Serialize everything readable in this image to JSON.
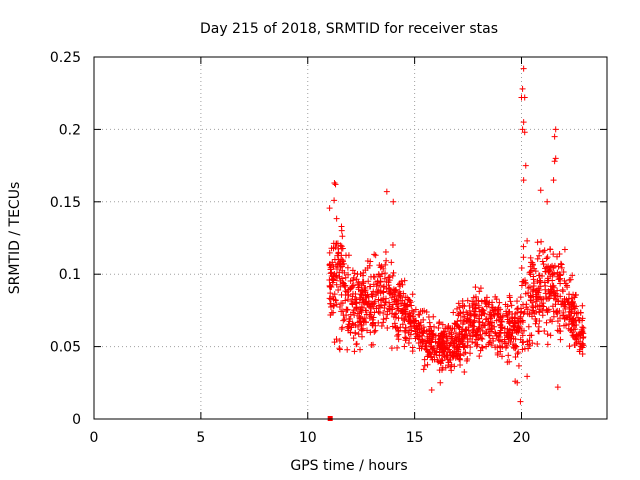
{
  "chart_data": {
    "type": "scatter",
    "title": "Day 215 of 2018, SRMTID for receiver stas",
    "xlabel": "GPS time / hours",
    "ylabel": "SRMTID / TECUs",
    "xlim": [
      0,
      24
    ],
    "ylim": [
      0,
      0.25
    ],
    "xticks": [
      0,
      5,
      10,
      15,
      20
    ],
    "yticks": [
      0,
      0.05,
      0.1,
      0.15,
      0.2,
      0.25
    ],
    "xtick_labels": [
      "0",
      "5",
      "10",
      "15",
      "20"
    ],
    "ytick_labels": [
      "0",
      "0.05",
      "0.1",
      "0.15",
      "0.2",
      "0.25"
    ],
    "grid": true,
    "marker": "+",
    "series_color": "#ff0000",
    "axis_color": "#000000",
    "grid_color": "#a0a0a0",
    "zero_marker": {
      "x": 11.05,
      "y": 0
    },
    "profile": {
      "hours": [
        11.0,
        11.3,
        11.8,
        12.3,
        12.8,
        13.3,
        13.8,
        14.3,
        14.8,
        15.3,
        15.8,
        16.3,
        16.8,
        17.3,
        17.8,
        18.3,
        18.8,
        19.3,
        19.8,
        20.1,
        20.5,
        21.0,
        21.5,
        22.0,
        22.5,
        22.9
      ],
      "center": [
        0.095,
        0.1,
        0.085,
        0.075,
        0.08,
        0.085,
        0.085,
        0.075,
        0.07,
        0.06,
        0.052,
        0.048,
        0.052,
        0.06,
        0.065,
        0.07,
        0.065,
        0.062,
        0.06,
        0.08,
        0.085,
        0.09,
        0.085,
        0.085,
        0.07,
        0.055
      ],
      "spread": [
        0.03,
        0.035,
        0.028,
        0.025,
        0.025,
        0.025,
        0.025,
        0.022,
        0.02,
        0.018,
        0.014,
        0.013,
        0.016,
        0.018,
        0.018,
        0.018,
        0.018,
        0.018,
        0.02,
        0.035,
        0.03,
        0.028,
        0.025,
        0.025,
        0.02,
        0.015
      ]
    },
    "highlights": [
      {
        "x": 11.25,
        "y": 0.163
      },
      {
        "x": 11.3,
        "y": 0.162
      },
      {
        "x": 13.7,
        "y": 0.157
      },
      {
        "x": 14.0,
        "y": 0.15
      },
      {
        "x": 20.1,
        "y": 0.242
      },
      {
        "x": 20.05,
        "y": 0.228
      },
      {
        "x": 20.15,
        "y": 0.222
      },
      {
        "x": 20.0,
        "y": 0.222
      },
      {
        "x": 20.1,
        "y": 0.205
      },
      {
        "x": 20.05,
        "y": 0.2
      },
      {
        "x": 20.15,
        "y": 0.198
      },
      {
        "x": 20.2,
        "y": 0.175
      },
      {
        "x": 20.1,
        "y": 0.165
      },
      {
        "x": 21.6,
        "y": 0.2
      },
      {
        "x": 21.55,
        "y": 0.195
      },
      {
        "x": 21.6,
        "y": 0.18
      },
      {
        "x": 21.55,
        "y": 0.178
      },
      {
        "x": 21.5,
        "y": 0.165
      },
      {
        "x": 20.9,
        "y": 0.158
      },
      {
        "x": 21.2,
        "y": 0.15
      },
      {
        "x": 19.8,
        "y": 0.025
      },
      {
        "x": 19.95,
        "y": 0.012
      },
      {
        "x": 15.8,
        "y": 0.02
      },
      {
        "x": 16.2,
        "y": 0.025
      },
      {
        "x": 21.7,
        "y": 0.022
      }
    ]
  }
}
